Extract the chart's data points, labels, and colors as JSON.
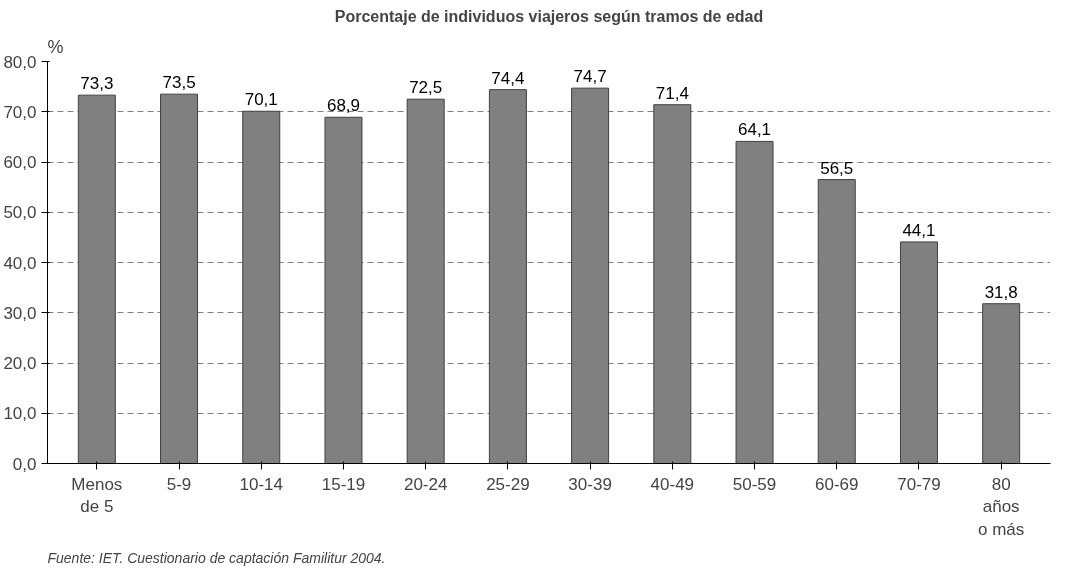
{
  "chart_data": {
    "type": "bar",
    "title": "Porcentaje de individuos viajeros según tramos de edad",
    "ylabel": "%",
    "categories": [
      "Menos de 5",
      "5-9",
      "10-14",
      "15-19",
      "20-24",
      "25-29",
      "30-39",
      "40-49",
      "50-59",
      "60-69",
      "70-79",
      "80 años o más"
    ],
    "values": [
      73.3,
      73.5,
      70.1,
      68.9,
      72.5,
      74.4,
      74.7,
      71.4,
      64.1,
      56.5,
      44.1,
      31.8
    ],
    "color": "#808080",
    "ylim": [
      0,
      80
    ],
    "yticks": [
      {
        "value": 0,
        "label": "0,0"
      },
      {
        "value": 10,
        "label": "10,0"
      },
      {
        "value": 20,
        "label": "20,0"
      },
      {
        "value": 30,
        "label": "30,0"
      },
      {
        "value": 40,
        "label": "40,0"
      },
      {
        "value": 50,
        "label": "50,0"
      },
      {
        "value": 60,
        "label": "60,0"
      },
      {
        "value": 70,
        "label": "70,0"
      },
      {
        "value": 80,
        "label": "80,0"
      }
    ],
    "value_labels": [
      "73,3",
      "73,5",
      "70,1",
      "68,9",
      "72,5",
      "74,4",
      "74,7",
      "71,4",
      "64,1",
      "56,5",
      "44,1",
      "31,8"
    ],
    "grid": "y",
    "annotations": [
      "Fuente: IET. Cuestionario de captación Familitur 2004."
    ]
  }
}
